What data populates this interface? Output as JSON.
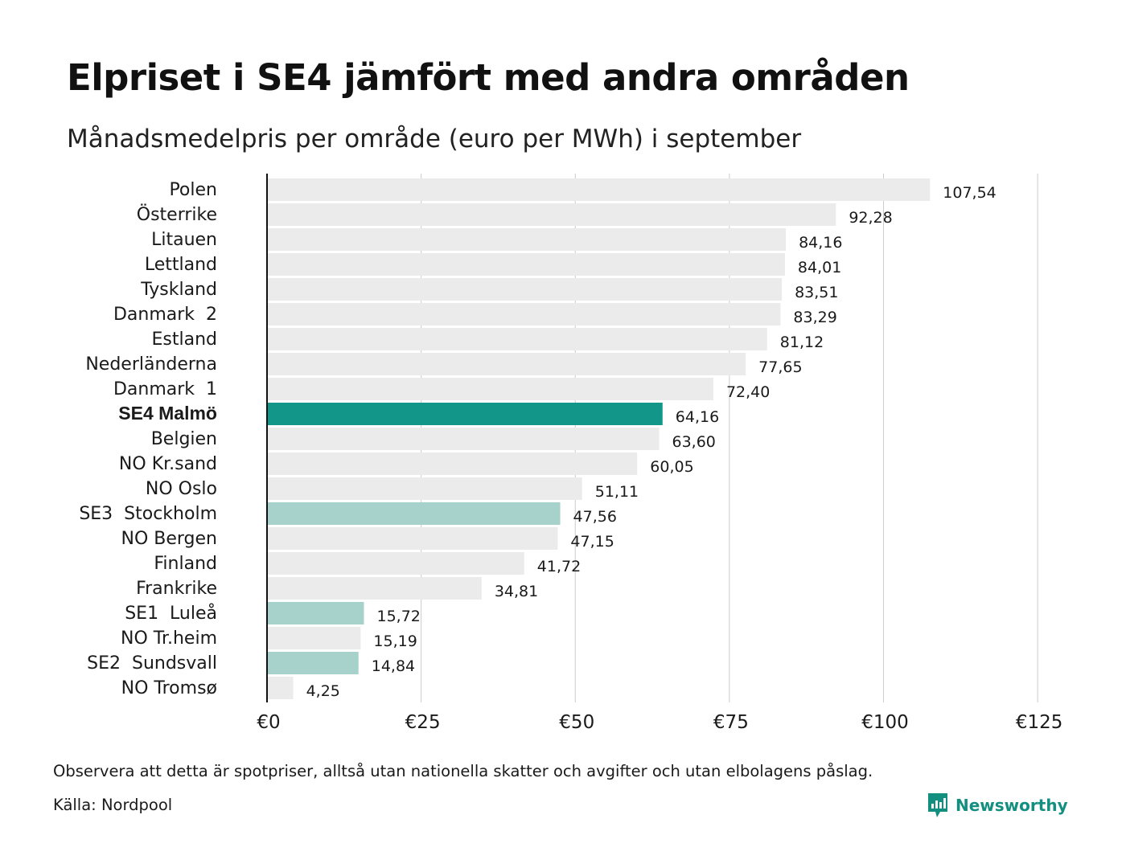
{
  "title": "Elpriset i SE4 jämfört med andra områden",
  "subtitle": "Månadsmedelpris per område (euro per MWh) i september",
  "footnote": "Observera att detta är spotpriser, alltså utan nationella skatter och avgifter och utan elbolagens påslag.",
  "source": "Källa: Nordpool",
  "brand": {
    "name": "Newsworthy",
    "icon": "newsworthy-logo-icon",
    "color": "#138f80"
  },
  "colors": {
    "highlight": "#12968a",
    "swedish": "#a7d2cb",
    "default": "#ebebeb",
    "grid": "#cccccc",
    "axis": "#111111"
  },
  "chart_data": {
    "type": "bar",
    "orientation": "horizontal",
    "title": "Elpriset i SE4 jämfört med andra områden",
    "subtitle": "Månadsmedelpris per område (euro per MWh) i september",
    "xlabel": "",
    "ylabel": "",
    "xlim": [
      0,
      125
    ],
    "xticks": [
      0,
      25,
      50,
      75,
      100,
      125
    ],
    "xtick_labels": [
      "€0",
      "€25",
      "€50",
      "€75",
      "€100",
      "€125"
    ],
    "grid": "vertical",
    "categories": [
      "Polen",
      "Österrike",
      "Litauen",
      "Lettland",
      "Tyskland",
      "Danmark  2",
      "Estland",
      "Nederländerna",
      "Danmark  1",
      "SE4 Malmö",
      "Belgien",
      "NO Kr.sand",
      "NO Oslo",
      "SE3  Stockholm",
      "NO Bergen",
      "Finland",
      "Frankrike",
      "SE1  Luleå",
      "NO Tr.heim",
      "SE2  Sundsvall",
      "NO Tromsø"
    ],
    "values": [
      107.54,
      92.28,
      84.16,
      84.01,
      83.51,
      83.29,
      81.12,
      77.65,
      72.4,
      64.16,
      63.6,
      60.05,
      51.11,
      47.56,
      47.15,
      41.72,
      34.81,
      15.72,
      15.19,
      14.84,
      4.25
    ],
    "value_labels": [
      "107,54",
      "92,28",
      "84,16",
      "84,01",
      "83,51",
      "83,29",
      "81,12",
      "77,65",
      "72,40",
      "64,16",
      "63,60",
      "60,05",
      "51,11",
      "47,56",
      "47,15",
      "41,72",
      "34,81",
      "15,72",
      "15,19",
      "14,84",
      "4,25"
    ],
    "highlight": [
      "default",
      "default",
      "default",
      "default",
      "default",
      "default",
      "default",
      "default",
      "default",
      "highlight",
      "default",
      "default",
      "default",
      "swedish",
      "default",
      "default",
      "default",
      "swedish",
      "default",
      "swedish",
      "default"
    ]
  }
}
